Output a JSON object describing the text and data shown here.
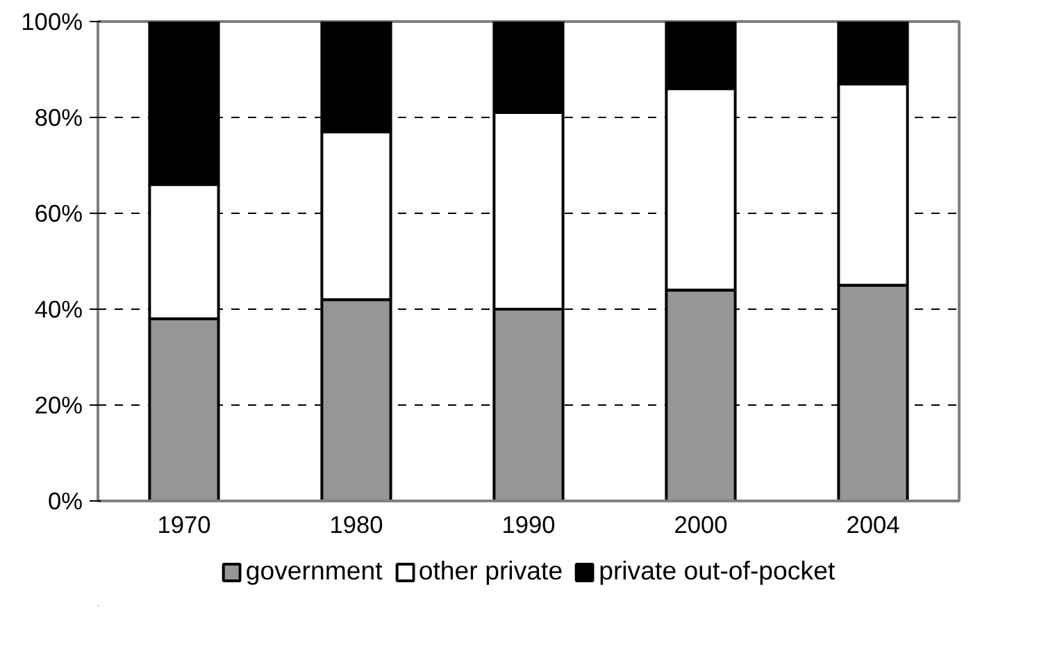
{
  "chart_data": {
    "type": "bar",
    "stacked": true,
    "categories": [
      "1970",
      "1980",
      "1990",
      "2000",
      "2004"
    ],
    "series": [
      {
        "name": "government",
        "color": "#969696",
        "values": [
          38,
          42,
          40,
          44,
          45
        ]
      },
      {
        "name": "other private",
        "color": "#ffffff",
        "values": [
          28,
          35,
          41,
          42,
          42
        ]
      },
      {
        "name": "private out-of-pocket",
        "color": "#000000",
        "values": [
          34,
          23,
          19,
          14,
          13
        ]
      }
    ],
    "ylim": [
      0,
      100
    ],
    "yticks": [
      {
        "value": 0,
        "label": "0%"
      },
      {
        "value": 20,
        "label": "20%"
      },
      {
        "value": 40,
        "label": "40%"
      },
      {
        "value": 60,
        "label": "60%"
      },
      {
        "value": 80,
        "label": "80%"
      },
      {
        "value": 100,
        "label": "100%"
      }
    ],
    "grid": "y",
    "legend": "bottom"
  }
}
